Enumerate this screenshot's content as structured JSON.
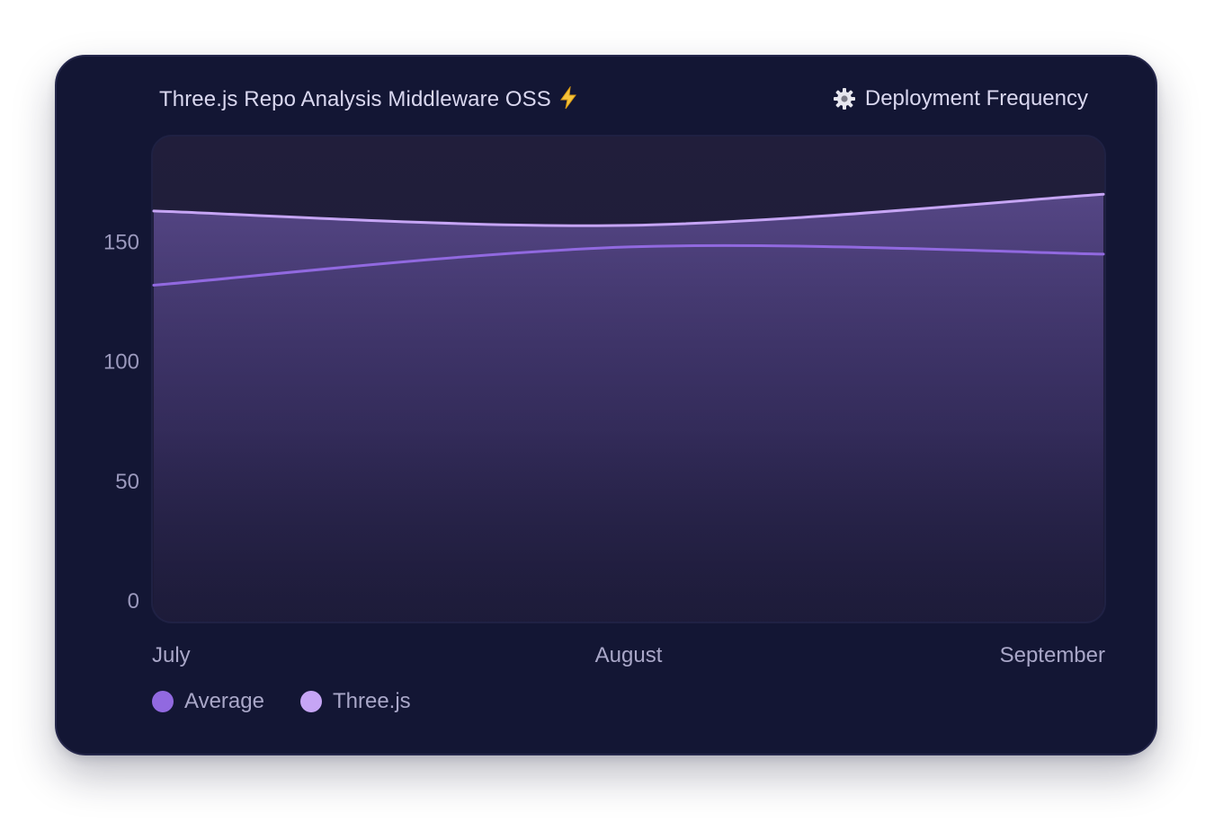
{
  "header": {
    "title": "Three.js Repo Analysis Middleware OSS",
    "title_icon": "lightning-bolt-icon",
    "metric_icon": "gear-icon",
    "metric": "Deployment Frequency"
  },
  "colors": {
    "card_background": "#131634",
    "average": "#9169e0",
    "threejs": "#c6a5f5",
    "tick_text": "#9b99bd"
  },
  "chart_data": {
    "type": "line",
    "title": "Deployment Frequency",
    "x": [
      "July",
      "August",
      "September"
    ],
    "series": [
      {
        "name": "Average",
        "values": [
          132,
          148,
          145
        ]
      },
      {
        "name": "Three.js",
        "values": [
          163,
          157,
          170
        ]
      }
    ],
    "ylim": [
      0,
      170
    ],
    "yticks": [
      0,
      50,
      100,
      150
    ],
    "grid": false,
    "legend_position": "bottom-left"
  }
}
